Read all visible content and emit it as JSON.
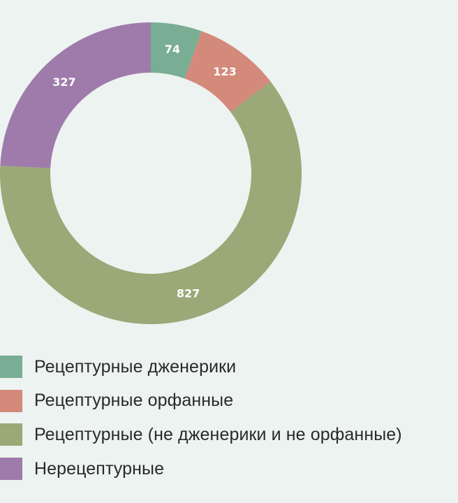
{
  "chart_data": {
    "type": "pie",
    "variant": "donut",
    "categories": [
      "Рецептурные дженерики",
      "Рецептурные орфанные",
      "Рецептурные (не дженерики и не орфанные)",
      "Нерецептурные"
    ],
    "values": [
      74,
      123,
      827,
      327
    ],
    "data_labels": [
      "74",
      "123",
      "827",
      "327"
    ],
    "colors": [
      "#79ad94",
      "#d38a7a",
      "#9ba877",
      "#9f7bac"
    ],
    "title": "",
    "legend_position": "bottom-left",
    "start_angle": "12 o'clock",
    "direction": "clockwise"
  }
}
